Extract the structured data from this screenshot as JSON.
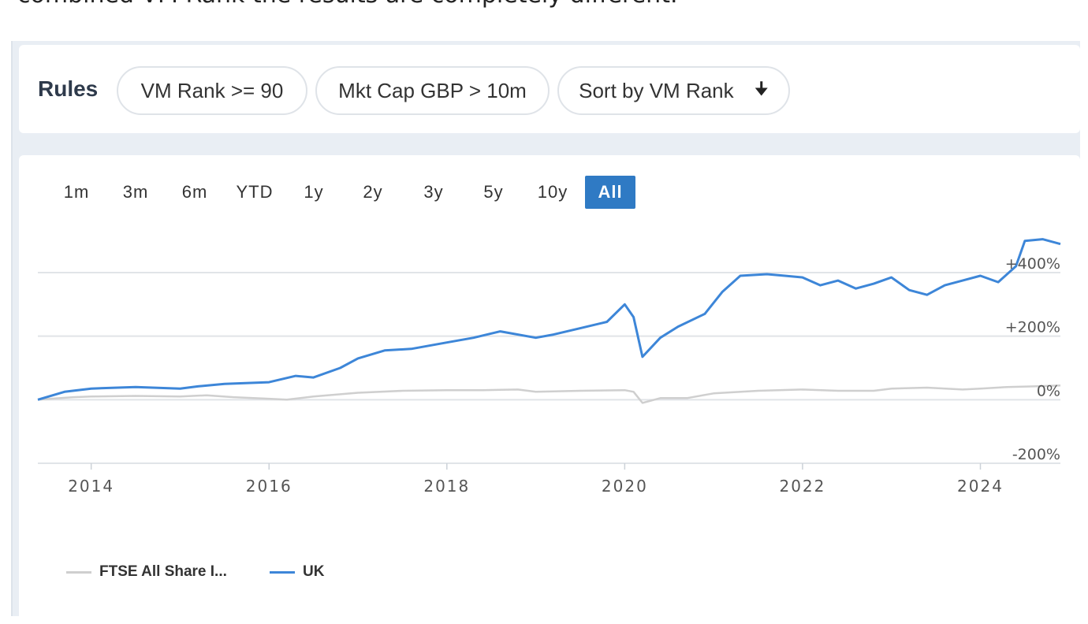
{
  "page": {
    "intro_text": "combined VM Rank the results are completely different."
  },
  "rules": {
    "title": "Rules",
    "chips": [
      {
        "label": "VM Rank >= 90"
      },
      {
        "label": "Mkt Cap GBP > 10m"
      },
      {
        "label": "Sort by VM Rank",
        "icon": "arrow-down-icon"
      }
    ]
  },
  "ranges": {
    "buttons": [
      "1m",
      "3m",
      "6m",
      "YTD",
      "1y",
      "2y",
      "3y",
      "5y",
      "10y",
      "All"
    ],
    "active": "All"
  },
  "chart_data": {
    "type": "line",
    "xlabel": "",
    "ylabel": "",
    "xlim": [
      2013.4,
      2024.9
    ],
    "ylim": [
      -200,
      400
    ],
    "x_ticks": [
      2014,
      2016,
      2018,
      2020,
      2022,
      2024
    ],
    "x_tick_labels": [
      "2014",
      "2016",
      "2018",
      "2020",
      "2022",
      "2024"
    ],
    "y_ticks": [
      400,
      200,
      0,
      -200
    ],
    "y_tick_labels": [
      "+400%",
      "+200%",
      "0%",
      "-200%"
    ],
    "grid": true,
    "legend_position": "bottom-left",
    "series": [
      {
        "name": "FTSE All Share I...",
        "color": "#cfcfcf",
        "x": [
          2013.4,
          2013.8,
          2014.0,
          2014.5,
          2015.0,
          2015.3,
          2015.6,
          2016.0,
          2016.2,
          2016.5,
          2017.0,
          2017.5,
          2018.0,
          2018.4,
          2018.8,
          2019.0,
          2019.5,
          2020.0,
          2020.1,
          2020.2,
          2020.4,
          2020.7,
          2021.0,
          2021.5,
          2022.0,
          2022.4,
          2022.8,
          2023.0,
          2023.4,
          2023.8,
          2024.0,
          2024.3,
          2024.6,
          2024.9
        ],
        "y": [
          0,
          8,
          10,
          12,
          10,
          14,
          8,
          3,
          0,
          10,
          22,
          28,
          30,
          30,
          32,
          25,
          28,
          30,
          25,
          -10,
          5,
          5,
          20,
          28,
          32,
          28,
          28,
          35,
          38,
          32,
          35,
          40,
          42,
          45
        ]
      },
      {
        "name": "UK",
        "color": "#3d86d8",
        "x": [
          2013.4,
          2013.7,
          2014.0,
          2014.5,
          2015.0,
          2015.2,
          2015.5,
          2016.0,
          2016.3,
          2016.5,
          2016.8,
          2017.0,
          2017.3,
          2017.6,
          2018.0,
          2018.3,
          2018.6,
          2019.0,
          2019.2,
          2019.5,
          2019.8,
          2020.0,
          2020.1,
          2020.2,
          2020.4,
          2020.6,
          2020.9,
          2021.1,
          2021.3,
          2021.6,
          2021.8,
          2022.0,
          2022.2,
          2022.4,
          2022.6,
          2022.8,
          2023.0,
          2023.2,
          2023.4,
          2023.6,
          2023.8,
          2024.0,
          2024.2,
          2024.4,
          2024.5,
          2024.7,
          2024.9
        ],
        "y": [
          0,
          25,
          35,
          40,
          35,
          42,
          50,
          55,
          75,
          70,
          100,
          130,
          155,
          160,
          180,
          195,
          215,
          195,
          205,
          225,
          245,
          300,
          260,
          135,
          195,
          230,
          270,
          340,
          390,
          395,
          390,
          385,
          360,
          375,
          350,
          365,
          385,
          345,
          330,
          360,
          375,
          390,
          370,
          420,
          500,
          505,
          490
        ]
      }
    ]
  }
}
